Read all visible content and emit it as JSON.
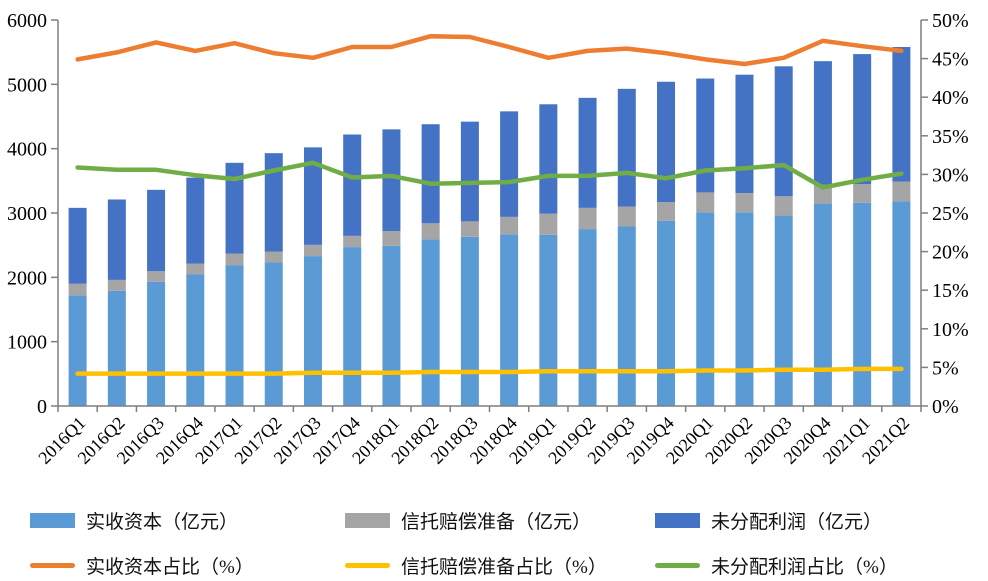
{
  "chart_data": {
    "type": "combo-stacked-bar-line",
    "title": "",
    "categories": [
      "2016Q1",
      "2016Q2",
      "2016Q3",
      "2016Q4",
      "2017Q1",
      "2017Q2",
      "2017Q3",
      "2017Q4",
      "2018Q1",
      "2018Q2",
      "2018Q3",
      "2018Q4",
      "2019Q1",
      "2019Q2",
      "2019Q3",
      "2019Q4",
      "2020Q1",
      "2020Q2",
      "2020Q3",
      "2020Q4",
      "2021Q1",
      "2021Q2"
    ],
    "left_axis": {
      "min": 0,
      "max": 6000,
      "step": 1000,
      "tick_labels": [
        "0",
        "1000",
        "2000",
        "3000",
        "4000",
        "5000",
        "6000"
      ]
    },
    "right_axis": {
      "min": 0,
      "max": 50,
      "step": 5,
      "suffix": "%",
      "tick_labels": [
        "0%",
        "5%",
        "10%",
        "15%",
        "20%",
        "25%",
        "30%",
        "35%",
        "40%",
        "45%",
        "50%"
      ]
    },
    "grid": false,
    "legend_position": "bottom",
    "bar_series": [
      {
        "name": "实收资本（亿元）",
        "color": "#5B9BD5",
        "values": [
          1720,
          1790,
          1930,
          2050,
          2190,
          2230,
          2330,
          2470,
          2490,
          2590,
          2630,
          2670,
          2660,
          2750,
          2790,
          2880,
          3010,
          3010,
          2960,
          3150,
          3160,
          3180
        ]
      },
      {
        "name": "信托赔偿准备（亿元）",
        "color": "#A5A5A5",
        "values": [
          180,
          170,
          165,
          165,
          180,
          170,
          175,
          175,
          230,
          250,
          240,
          270,
          330,
          330,
          310,
          290,
          310,
          300,
          300,
          290,
          290,
          310
        ]
      },
      {
        "name": "未分配利润（亿元）",
        "color": "#4472C4",
        "values": [
          1180,
          1250,
          1265,
          1335,
          1410,
          1530,
          1515,
          1575,
          1580,
          1540,
          1550,
          1640,
          1700,
          1710,
          1830,
          1870,
          1770,
          1840,
          2020,
          1920,
          2020,
          2090
        ]
      }
    ],
    "line_series": [
      {
        "name": "实收资本占比（%）",
        "color": "#ED7D31",
        "values": [
          44.9,
          45.8,
          47.1,
          46.0,
          47.0,
          45.7,
          45.1,
          46.5,
          46.5,
          47.9,
          47.8,
          46.5,
          45.1,
          46.0,
          46.3,
          45.7,
          44.9,
          44.3,
          45.1,
          47.3,
          46.6,
          46.0
        ]
      },
      {
        "name": "信托赔偿准备占比（%）",
        "color": "#FFC000",
        "values": [
          4.2,
          4.2,
          4.2,
          4.2,
          4.2,
          4.2,
          4.3,
          4.3,
          4.3,
          4.4,
          4.4,
          4.4,
          4.5,
          4.5,
          4.5,
          4.5,
          4.6,
          4.6,
          4.7,
          4.7,
          4.8,
          4.8
        ]
      },
      {
        "name": "未分配利润占比（%）",
        "color": "#70AD47",
        "values": [
          30.9,
          30.6,
          30.6,
          29.9,
          29.4,
          30.5,
          31.5,
          29.6,
          29.8,
          28.8,
          28.9,
          29.0,
          29.8,
          29.8,
          30.2,
          29.5,
          30.5,
          30.8,
          31.2,
          28.3,
          29.3,
          30.1
        ]
      }
    ],
    "axis_color": "#7f7f7f",
    "label_color": "#000000"
  }
}
